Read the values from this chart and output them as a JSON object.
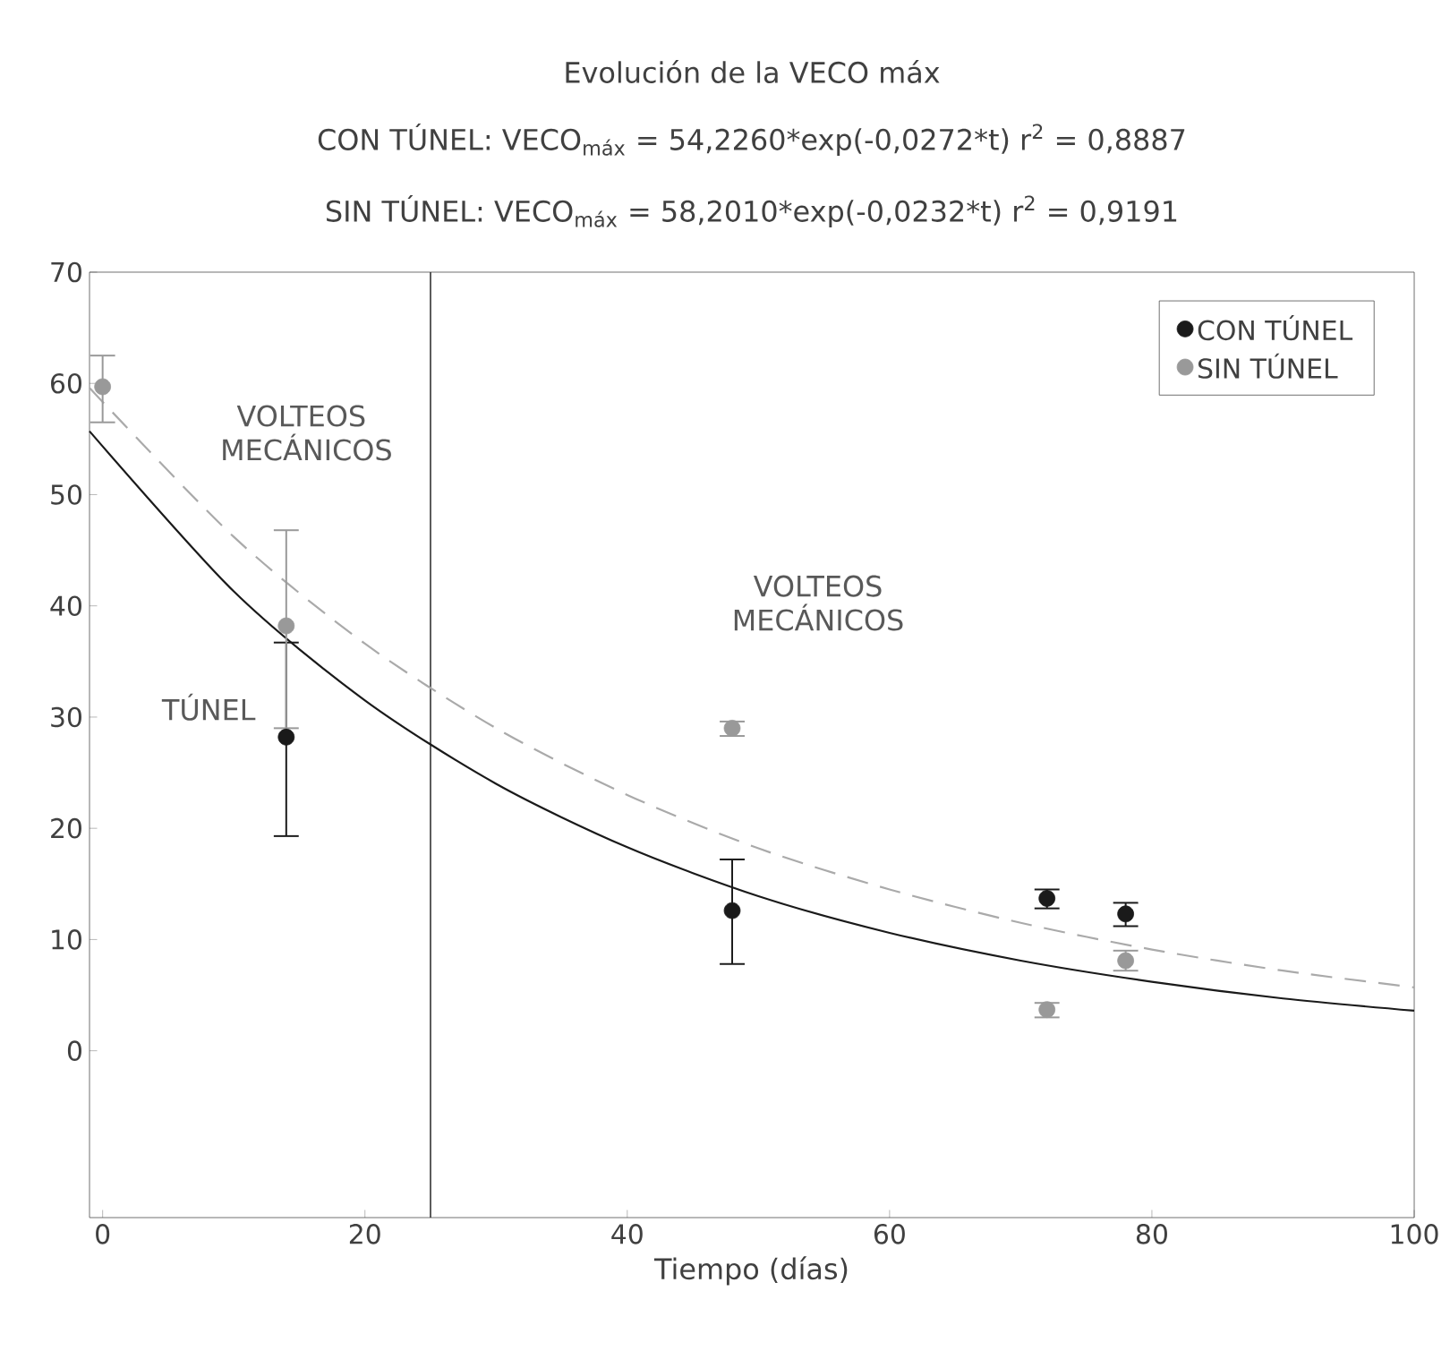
{
  "chart_data": {
    "type": "scatter",
    "title": "Evolución de la VECO máx",
    "annotations": [
      "CON TÚNEL: VECO$_{máx}$ = 54,2260*exp(-0,0272*t) r$^{2}$ = 0,8887",
      "SIN TÚNEL: VECO$_{máx}$ = 58,2010*exp(-0,0232*t) r$^{2}$ = 0,9191",
      "VOLTEOS MECÁNICOS",
      "TÚNEL",
      "VOLTEOS MECÁNICOS"
    ],
    "xlabel": "Tiempo (días)",
    "xlim": [
      -1,
      100
    ],
    "xticks": [
      0,
      20,
      40,
      60,
      80,
      100
    ],
    "ylim": [
      -15,
      70
    ],
    "yticks": [
      0,
      10,
      20,
      30,
      40,
      50,
      60,
      70
    ],
    "grid": false,
    "legend": "top right",
    "ref_lines": [
      {
        "axis": "x",
        "value": 25,
        "color": "#333333"
      }
    ],
    "series": [
      {
        "name": "CON TÚNEL",
        "type": "scatter",
        "color": "#1a1a1a",
        "marker": "circle",
        "x": [
          14,
          48,
          72,
          78
        ],
        "values": [
          28.2,
          12.6,
          13.7,
          12.3
        ],
        "errors": [
          [
            19.3,
            36.7
          ],
          [
            7.8,
            17.2
          ],
          [
            12.8,
            14.5
          ],
          [
            11.2,
            13.3
          ]
        ]
      },
      {
        "name": "SIN TÚNEL",
        "type": "scatter",
        "color": "#999999",
        "marker": "circle",
        "x": [
          0,
          14,
          48,
          72,
          78
        ],
        "values": [
          59.7,
          38.2,
          29.0,
          3.7,
          8.1
        ],
        "errors": [
          [
            56.5,
            62.5
          ],
          [
            29.0,
            46.8
          ],
          [
            28.3,
            29.6
          ],
          [
            3.0,
            4.3
          ],
          [
            7.2,
            9.0
          ]
        ]
      },
      {
        "type": "line",
        "color": "#1a1a1a",
        "line_style": "solid",
        "x": [
          -1,
          10,
          20,
          30,
          40,
          50,
          60,
          70,
          80,
          90,
          100
        ],
        "values": [
          55.7,
          41.3,
          31.5,
          24.0,
          18.3,
          13.9,
          10.6,
          8.1,
          6.2,
          4.7,
          3.6
        ]
      },
      {
        "type": "line",
        "color": "#aaaaaa",
        "line_style": "dashed",
        "x": [
          -1,
          10,
          20,
          30,
          40,
          50,
          60,
          70,
          80,
          90,
          100
        ],
        "values": [
          59.6,
          46.2,
          36.6,
          29.0,
          23.0,
          18.2,
          14.5,
          11.5,
          9.1,
          7.2,
          5.7
        ]
      }
    ]
  }
}
